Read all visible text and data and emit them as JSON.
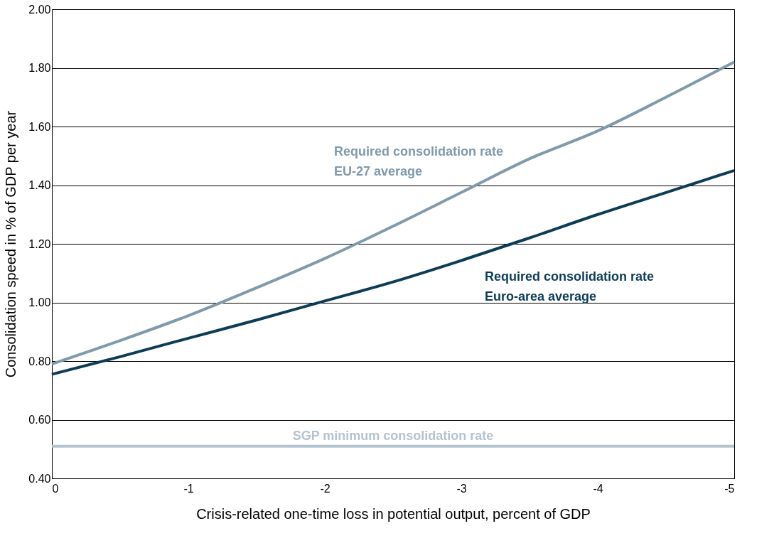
{
  "chart_data": {
    "type": "line",
    "xlabel": "Crisis-related one-time loss in potential output, percent of GDP",
    "ylabel": "Consolidation speed in % of GDP per year",
    "xlim": [
      0,
      -5
    ],
    "xticks": [
      0,
      -1,
      -2,
      -3,
      -4,
      -5
    ],
    "ylim": [
      0.4,
      2.0
    ],
    "yticks": [
      {
        "value": 0.4,
        "label": "0.40"
      },
      {
        "value": 0.6,
        "label": "0.60"
      },
      {
        "value": 0.8,
        "label": "0.80"
      },
      {
        "value": 1.0,
        "label": "1.00"
      },
      {
        "value": 1.2,
        "label": "1.20"
      },
      {
        "value": 1.4,
        "label": "1.40"
      },
      {
        "value": 1.6,
        "label": "1.60"
      },
      {
        "value": 1.8,
        "label": "1.80"
      },
      {
        "value": 2.0,
        "label": "2.00"
      }
    ],
    "grid": "y",
    "legend": false,
    "marker": "none",
    "line_style": "solid",
    "series": [
      {
        "name": "Required consolidation rate\nEU-27 average",
        "color": "#7f9aab",
        "x": [
          0,
          -0.5,
          -1,
          -1.5,
          -2,
          -2.5,
          -3,
          -3.5,
          -4,
          -4.5,
          -5
        ],
        "values": [
          0.79,
          0.87,
          0.955,
          1.05,
          1.15,
          1.26,
          1.375,
          1.49,
          1.585,
          1.7,
          1.82
        ]
      },
      {
        "name": "Required consolidation rate\nEuro-area average",
        "color": "#0d3d56",
        "x": [
          0,
          -0.5,
          -1,
          -1.5,
          -2,
          -2.5,
          -3,
          -3.5,
          -4,
          -4.5,
          -5
        ],
        "values": [
          0.755,
          0.815,
          0.878,
          0.94,
          1.005,
          1.07,
          1.143,
          1.22,
          1.3,
          1.375,
          1.45
        ]
      },
      {
        "name": "SGP minimum consolidation rate",
        "color": "#b3c4d0",
        "x": [
          0,
          -5
        ],
        "values": [
          0.51,
          0.51
        ]
      }
    ]
  }
}
